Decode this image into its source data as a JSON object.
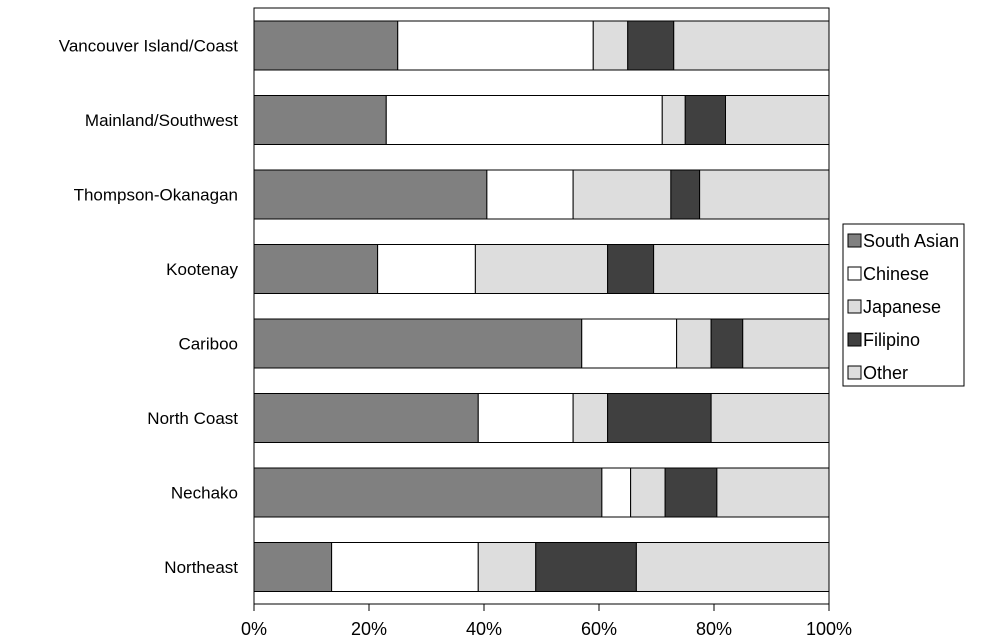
{
  "chart_data": {
    "type": "bar",
    "orientation": "horizontal",
    "stacked": "percent",
    "categories": [
      "Vancouver Island/Coast",
      "Mainland/Southwest",
      "Thompson-Okanagan",
      "Kootenay",
      "Cariboo",
      "North Coast",
      "Nechako",
      "Northeast"
    ],
    "series": [
      {
        "name": "South Asian",
        "color": "#808080",
        "values": [
          25,
          23,
          40.5,
          21.5,
          57,
          39,
          60.5,
          13.5
        ]
      },
      {
        "name": "Chinese",
        "color": "#ffffff",
        "values": [
          34,
          48,
          15,
          17,
          16.5,
          16.5,
          5,
          25.5
        ]
      },
      {
        "name": "Japanese",
        "color": "#dddddd",
        "values": [
          6,
          4,
          17,
          23,
          6,
          6,
          6,
          10
        ]
      },
      {
        "name": "Filipino",
        "color": "#404040",
        "values": [
          8,
          7,
          5,
          8,
          5.5,
          18,
          9,
          17.5
        ]
      },
      {
        "name": "Other",
        "color": "#dddddd",
        "values": [
          27,
          18,
          22.5,
          30.5,
          15,
          20.5,
          19.5,
          33.5
        ]
      }
    ],
    "xticks": [
      "0%",
      "20%",
      "40%",
      "60%",
      "80%",
      "100%"
    ],
    "xlim": [
      0,
      100
    ],
    "legend": "right",
    "grid": false
  }
}
